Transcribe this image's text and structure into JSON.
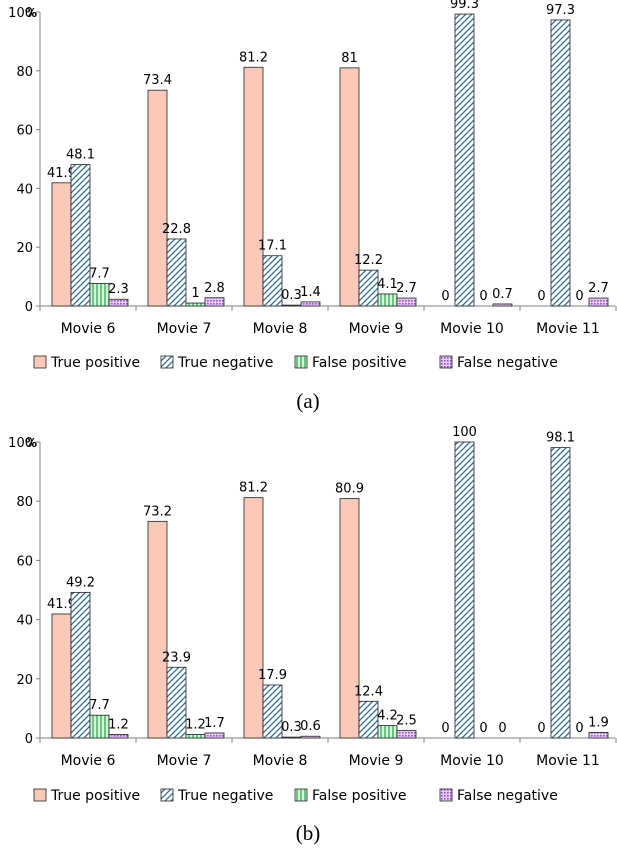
{
  "colors": {
    "true_positive": "#F9CAB8",
    "true_negative": "#2E6E8E",
    "false_positive": "#21A44E",
    "false_negative": "#9B49D0",
    "axis": "#808080"
  },
  "chart_data": [
    {
      "type": "bar",
      "caption": "(a)",
      "y_unit_label": "%",
      "ylim": [
        0,
        100
      ],
      "yticks": [
        0,
        20,
        40,
        60,
        80,
        100
      ],
      "grid": false,
      "legend_position": "bottom",
      "categories": [
        "Movie 6",
        "Movie 7",
        "Movie 8",
        "Movie 9",
        "Movie 10",
        "Movie 11"
      ],
      "series": [
        {
          "name": "True positive",
          "values": [
            41.9,
            73.4,
            81.2,
            81,
            0,
            0
          ],
          "labels": [
            "41.9",
            "73.4",
            "81.2",
            "81",
            "0",
            "0"
          ]
        },
        {
          "name": "True negative",
          "values": [
            48.1,
            22.8,
            17.1,
            12.2,
            99.3,
            97.3
          ],
          "labels": [
            "48.1",
            "22.8",
            "17.1",
            "12.2",
            "99.3",
            "97.3"
          ]
        },
        {
          "name": "False positive",
          "values": [
            7.7,
            1,
            0.3,
            4.1,
            0,
            0
          ],
          "labels": [
            "7.7",
            "1",
            "0.3",
            "4.1",
            "0",
            "0"
          ]
        },
        {
          "name": "False negative",
          "values": [
            2.3,
            2.8,
            1.4,
            2.7,
            0.7,
            2.7
          ],
          "labels": [
            "2.3",
            "2.8",
            "1.4",
            "2.7",
            "0.7",
            "2.7"
          ]
        }
      ]
    },
    {
      "type": "bar",
      "caption": "(b)",
      "y_unit_label": "%",
      "ylim": [
        0,
        100
      ],
      "yticks": [
        0,
        20,
        40,
        60,
        80,
        100
      ],
      "grid": false,
      "legend_position": "bottom",
      "categories": [
        "Movie 6",
        "Movie 7",
        "Movie 8",
        "Movie 9",
        "Movie 10",
        "Movie 11"
      ],
      "series": [
        {
          "name": "True positive",
          "values": [
            41.9,
            73.2,
            81.2,
            80.9,
            0,
            0
          ],
          "labels": [
            "41.9",
            "73.2",
            "81.2",
            "80.9",
            "0",
            "0"
          ]
        },
        {
          "name": "True negative",
          "values": [
            49.2,
            23.9,
            17.9,
            12.4,
            100,
            98.1
          ],
          "labels": [
            "49.2",
            "23.9",
            "17.9",
            "12.4",
            "100",
            "98.1"
          ]
        },
        {
          "name": "False positive",
          "values": [
            7.7,
            1.2,
            0.3,
            4.2,
            0,
            0
          ],
          "labels": [
            "7.7",
            "1.2",
            "0.3",
            "4.2",
            "0",
            "0"
          ]
        },
        {
          "name": "False negative",
          "values": [
            1.2,
            1.7,
            0.6,
            2.5,
            0,
            1.9
          ],
          "labels": [
            "1.2",
            "1.7",
            "0.6",
            "2.5",
            "0",
            "1.9"
          ]
        }
      ]
    }
  ]
}
